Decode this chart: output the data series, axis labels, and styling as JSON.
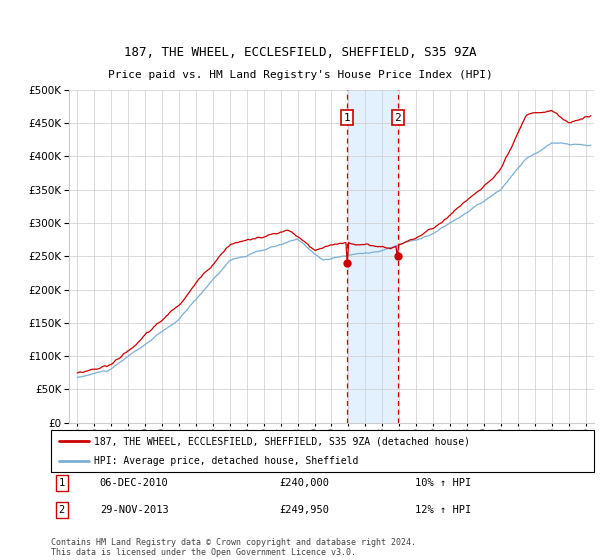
{
  "title1": "187, THE WHEEL, ECCLESFIELD, SHEFFIELD, S35 9ZA",
  "title2": "Price paid vs. HM Land Registry's House Price Index (HPI)",
  "legend_line1": "187, THE WHEEL, ECCLESFIELD, SHEFFIELD, S35 9ZA (detached house)",
  "legend_line2": "HPI: Average price, detached house, Sheffield",
  "annotation1_label": "1",
  "annotation1_date": "06-DEC-2010",
  "annotation1_price": "£240,000",
  "annotation1_hpi": "10% ↑ HPI",
  "annotation1_year": 2010.92,
  "annotation2_label": "2",
  "annotation2_date": "29-NOV-2013",
  "annotation2_price": "£249,950",
  "annotation2_hpi": "12% ↑ HPI",
  "annotation2_year": 2013.91,
  "footer": "Contains HM Land Registry data © Crown copyright and database right 2024.\nThis data is licensed under the Open Government Licence v3.0.",
  "hpi_color": "#7bafd4",
  "price_color": "#cc0000",
  "shade_color": "#ddeeff",
  "ylim_min": 0,
  "ylim_max": 500000,
  "yticks": [
    0,
    50000,
    100000,
    150000,
    200000,
    250000,
    300000,
    350000,
    400000,
    450000,
    500000
  ],
  "xlim_min": 1994.5,
  "xlim_max": 2025.5
}
